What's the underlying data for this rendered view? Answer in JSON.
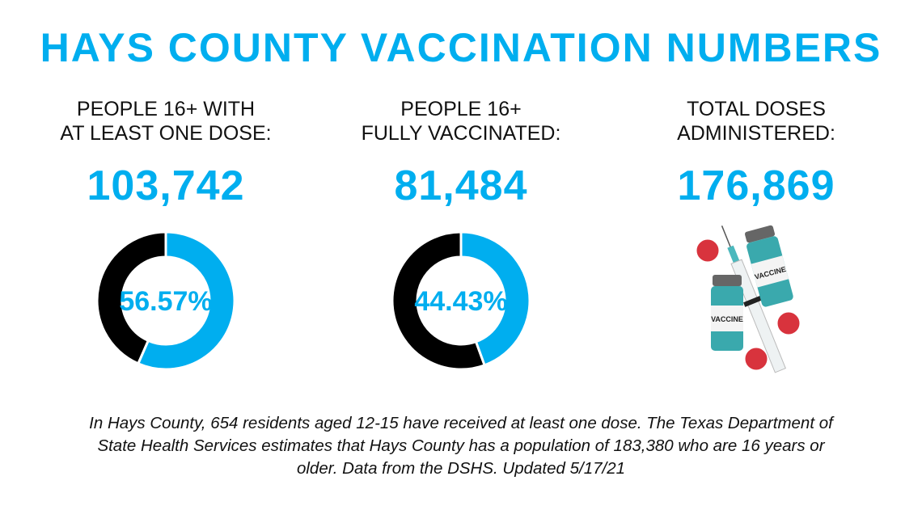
{
  "title": "HAYS COUNTY VACCINATION NUMBERS",
  "stats": [
    {
      "heading_line1": "PEOPLE  16+ WITH",
      "heading_line2": "AT LEAST ONE DOSE:",
      "value": "103,742"
    },
    {
      "heading_line1": "PEOPLE 16+",
      "heading_line2": "FULLY VACCINATED:",
      "value": "81,484"
    },
    {
      "heading_line1": "TOTAL DOSES",
      "heading_line2": "ADMINISTERED:",
      "value": "176,869"
    }
  ],
  "chart_data": [
    {
      "type": "pie",
      "variant": "donut",
      "label": "56.57%",
      "slices": [
        {
          "value": 56.57,
          "color": "#00aeef"
        },
        {
          "value": 43.43,
          "color": "#000000"
        }
      ]
    },
    {
      "type": "pie",
      "variant": "donut",
      "label": "44.43%",
      "slices": [
        {
          "value": 44.43,
          "color": "#00aeef"
        },
        {
          "value": 55.57,
          "color": "#000000"
        }
      ]
    }
  ],
  "illustration": {
    "vial_label": "VACCINE",
    "icons": [
      "vaccine-vial-icon",
      "syringe-icon",
      "virus-icon"
    ]
  },
  "footer": {
    "line1": "In Hays County, 654 residents aged 12-15 have received at least one dose. The Texas Department of",
    "line2": "State Health Services estimates that Hays County has a population of 183,380 who are 16 years or",
    "line3": "older. Data from the DSHS. Updated 5/17/21"
  },
  "colors": {
    "accent": "#00aeef",
    "dark": "#000000"
  }
}
